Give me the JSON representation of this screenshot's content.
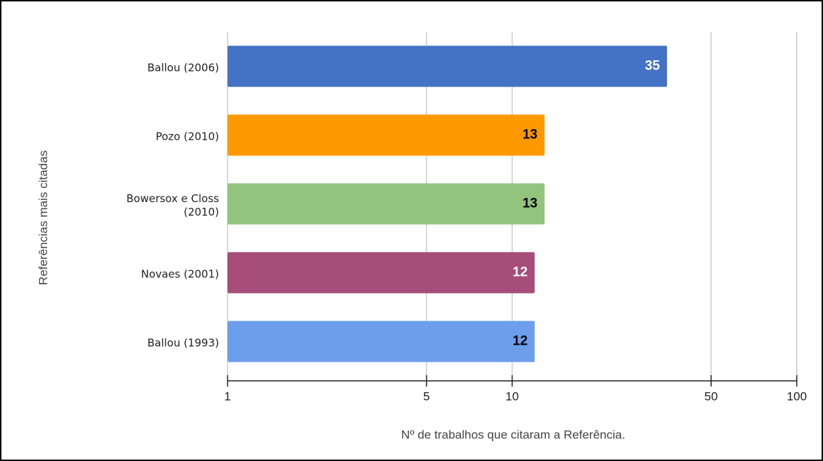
{
  "chart_data": {
    "type": "bar",
    "orientation": "horizontal",
    "xlabel": "Nº de trabalhos que citaram a Referência.",
    "ylabel": "Referências mais citadas",
    "categories": [
      "Ballou (2006)",
      "Pozo (2010)",
      "Bowersox e Closs (2010)",
      "Novaes (2001)",
      "Ballou (1993)"
    ],
    "values": [
      35,
      13,
      13,
      12,
      12
    ],
    "colors": [
      "#4472c4",
      "#ff9900",
      "#93c47d",
      "#a64d79",
      "#6d9eeb"
    ],
    "label_colors": [
      "#ffffff",
      "#000000",
      "#000000",
      "#ffffff",
      "#000000"
    ],
    "xscale": "log",
    "xlim": [
      1,
      100
    ],
    "xticks": [
      1,
      5,
      10,
      50,
      100
    ],
    "grid": true
  }
}
